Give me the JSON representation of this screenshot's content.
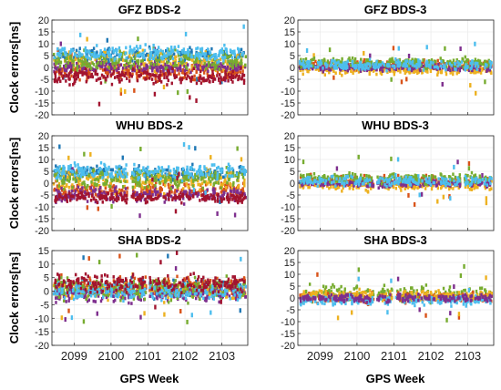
{
  "figure": {
    "ylabel": "Clock errors[ns]",
    "xlabel": "GPS Week"
  },
  "chart_data": [
    {
      "type": "scatter",
      "title": "GFZ BDS-2",
      "xlim": [
        2098.4,
        2103.7
      ],
      "ylim": [
        -20,
        20
      ],
      "xticks": [
        2099,
        2100,
        2101,
        2102,
        2103
      ],
      "yticks": [
        -20,
        -15,
        -10,
        -5,
        0,
        5,
        10,
        15,
        20
      ],
      "show_xticklabels": false,
      "grid": true,
      "approx_series": [
        {
          "color": "#1f77b4",
          "center": 5,
          "spread": 3
        },
        {
          "color": "#d95319",
          "center": -2,
          "spread": 3
        },
        {
          "color": "#edb120",
          "center": 2,
          "spread": 4
        },
        {
          "color": "#7e2f8e",
          "center": 0,
          "spread": 2
        },
        {
          "color": "#77ac30",
          "center": 3,
          "spread": 4
        },
        {
          "color": "#4dbeee",
          "center": 6,
          "spread": 3
        },
        {
          "color": "#a2142f",
          "center": -4,
          "spread": 3
        }
      ],
      "gaps": []
    },
    {
      "type": "scatter",
      "title": "GFZ BDS-3",
      "xlim": [
        2098.4,
        2103.7
      ],
      "ylim": [
        -20,
        20
      ],
      "xticks": [
        2099,
        2100,
        2101,
        2102,
        2103
      ],
      "yticks": [
        -20,
        -15,
        -10,
        -5,
        0,
        5,
        10,
        15,
        20
      ],
      "show_xticklabels": false,
      "grid": true,
      "approx_series": [
        {
          "color": "#d95319",
          "center": 1,
          "spread": 2
        },
        {
          "color": "#edb120",
          "center": -1,
          "spread": 2
        },
        {
          "color": "#7e2f8e",
          "center": 0,
          "spread": 1.5
        },
        {
          "color": "#77ac30",
          "center": 2,
          "spread": 2
        },
        {
          "color": "#4dbeee",
          "center": 1,
          "spread": 2
        }
      ],
      "gaps": []
    },
    {
      "type": "scatter",
      "title": "WHU BDS-2",
      "xlim": [
        2098.4,
        2103.7
      ],
      "ylim": [
        -20,
        20
      ],
      "xticks": [
        2099,
        2100,
        2101,
        2102,
        2103
      ],
      "yticks": [
        -20,
        -15,
        -10,
        -5,
        0,
        5,
        10,
        15,
        20
      ],
      "show_xticklabels": false,
      "grid": true,
      "approx_series": [
        {
          "color": "#1f77b4",
          "center": 4,
          "spread": 3
        },
        {
          "color": "#d95319",
          "center": -3,
          "spread": 3
        },
        {
          "color": "#edb120",
          "center": 1,
          "spread": 4
        },
        {
          "color": "#7e2f8e",
          "center": -5,
          "spread": 3
        },
        {
          "color": "#77ac30",
          "center": 2,
          "spread": 4
        },
        {
          "color": "#4dbeee",
          "center": 5,
          "spread": 3
        },
        {
          "color": "#a2142f",
          "center": -6,
          "spread": 2
        }
      ],
      "gaps": [
        [
          2100.45,
          2100.55
        ]
      ]
    },
    {
      "type": "scatter",
      "title": "WHU BDS-3",
      "xlim": [
        2098.4,
        2103.7
      ],
      "ylim": [
        -20,
        20
      ],
      "xticks": [
        2099,
        2100,
        2101,
        2102,
        2103
      ],
      "yticks": [
        -20,
        -15,
        -10,
        -5,
        0,
        5,
        10,
        15,
        20
      ],
      "show_xticklabels": false,
      "grid": true,
      "approx_series": [
        {
          "color": "#d95319",
          "center": 1,
          "spread": 2
        },
        {
          "color": "#edb120",
          "center": -1,
          "spread": 2
        },
        {
          "color": "#7e2f8e",
          "center": 0,
          "spread": 1.5
        },
        {
          "color": "#77ac30",
          "center": 2,
          "spread": 2
        },
        {
          "color": "#4dbeee",
          "center": 1,
          "spread": 2
        }
      ],
      "gaps": [
        [
          2100.45,
          2100.55
        ],
        [
          2102.8,
          2102.9
        ]
      ]
    },
    {
      "type": "scatter",
      "title": "SHA BDS-2",
      "xlim": [
        2098.4,
        2103.7
      ],
      "ylim": [
        -20,
        15
      ],
      "xticks": [
        2099,
        2100,
        2101,
        2102,
        2103
      ],
      "yticks": [
        -20,
        -15,
        -10,
        -5,
        0,
        5,
        10,
        15
      ],
      "show_xticklabels": true,
      "grid": true,
      "approx_series": [
        {
          "color": "#1f77b4",
          "center": 1,
          "spread": 3
        },
        {
          "color": "#d95319",
          "center": 2,
          "spread": 3
        },
        {
          "color": "#edb120",
          "center": 0,
          "spread": 3
        },
        {
          "color": "#7e2f8e",
          "center": -1,
          "spread": 3
        },
        {
          "color": "#77ac30",
          "center": 1,
          "spread": 4
        },
        {
          "color": "#4dbeee",
          "center": 0,
          "spread": 3
        },
        {
          "color": "#a2142f",
          "center": 3,
          "spread": 3
        }
      ],
      "gaps": [
        [
          2100.95,
          2101.05
        ]
      ]
    },
    {
      "type": "scatter",
      "title": "SHA BDS-3",
      "xlim": [
        2098.4,
        2103.7
      ],
      "ylim": [
        -20,
        20
      ],
      "xticks": [
        2099,
        2100,
        2101,
        2102,
        2103
      ],
      "yticks": [
        -20,
        -15,
        -10,
        -5,
        0,
        5,
        10,
        15,
        20
      ],
      "show_xticklabels": true,
      "grid": true,
      "approx_series": [
        {
          "color": "#77ac30",
          "center": 2,
          "spread": 3
        },
        {
          "color": "#d95319",
          "center": 0,
          "spread": 2
        },
        {
          "color": "#edb120",
          "center": 1,
          "spread": 2
        },
        {
          "color": "#4dbeee",
          "center": -1,
          "spread": 2
        },
        {
          "color": "#7e2f8e",
          "center": 0,
          "spread": 1.5
        }
      ],
      "gaps": [
        [
          2100.45,
          2100.55
        ],
        [
          2100.95,
          2101.05
        ]
      ]
    }
  ]
}
